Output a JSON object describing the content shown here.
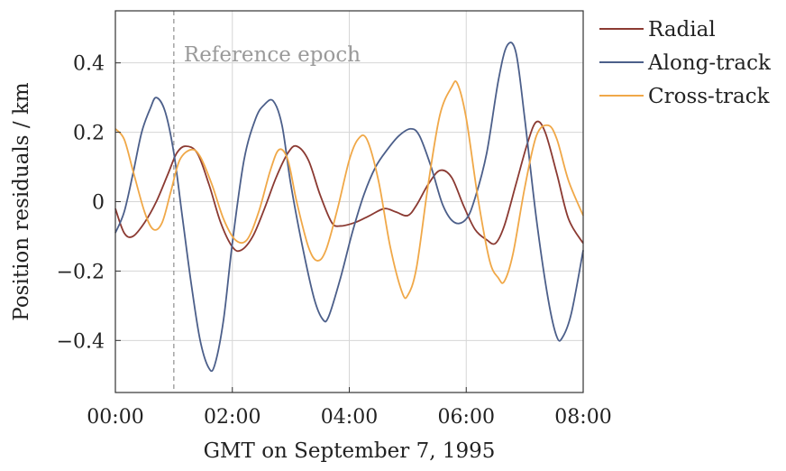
{
  "chart_data": {
    "type": "line",
    "xlabel": "GMT on September 7, 1995",
    "ylabel": "Position residuals / km",
    "x_unit": "hours GMT",
    "xlim": [
      0,
      8
    ],
    "ylim": [
      -0.55,
      0.55
    ],
    "x_ticks": [
      {
        "value": 0,
        "label": "00:00"
      },
      {
        "value": 2,
        "label": "02:00"
      },
      {
        "value": 4,
        "label": "04:00"
      },
      {
        "value": 6,
        "label": "06:00"
      },
      {
        "value": 8,
        "label": "08:00"
      }
    ],
    "y_ticks": [
      {
        "value": 0.4,
        "label": "0.4"
      },
      {
        "value": 0.2,
        "label": "0.2"
      },
      {
        "value": 0,
        "label": "0"
      },
      {
        "value": -0.2,
        "label": "−0.2"
      },
      {
        "value": -0.4,
        "label": "−0.4"
      }
    ],
    "grid": true,
    "legend_position": "outside-right-top",
    "annotation": {
      "x": 1.0,
      "label": "Reference epoch"
    },
    "series": [
      {
        "name": "Radial",
        "color": "#8b3a32",
        "points": [
          [
            0.0,
            -0.02
          ],
          [
            0.15,
            -0.09
          ],
          [
            0.3,
            -0.1
          ],
          [
            0.5,
            -0.06
          ],
          [
            0.7,
            0.0
          ],
          [
            0.9,
            0.08
          ],
          [
            1.05,
            0.14
          ],
          [
            1.2,
            0.16
          ],
          [
            1.4,
            0.14
          ],
          [
            1.6,
            0.05
          ],
          [
            1.8,
            -0.06
          ],
          [
            2.0,
            -0.13
          ],
          [
            2.15,
            -0.14
          ],
          [
            2.35,
            -0.1
          ],
          [
            2.55,
            -0.02
          ],
          [
            2.75,
            0.07
          ],
          [
            2.95,
            0.14
          ],
          [
            3.1,
            0.16
          ],
          [
            3.3,
            0.12
          ],
          [
            3.5,
            0.02
          ],
          [
            3.7,
            -0.06
          ],
          [
            3.85,
            -0.07
          ],
          [
            4.1,
            -0.06
          ],
          [
            4.35,
            -0.04
          ],
          [
            4.6,
            -0.02
          ],
          [
            4.8,
            -0.03
          ],
          [
            5.0,
            -0.04
          ],
          [
            5.15,
            -0.01
          ],
          [
            5.35,
            0.05
          ],
          [
            5.55,
            0.09
          ],
          [
            5.75,
            0.07
          ],
          [
            5.95,
            -0.01
          ],
          [
            6.15,
            -0.08
          ],
          [
            6.35,
            -0.11
          ],
          [
            6.5,
            -0.12
          ],
          [
            6.65,
            -0.07
          ],
          [
            6.85,
            0.05
          ],
          [
            7.05,
            0.17
          ],
          [
            7.2,
            0.23
          ],
          [
            7.35,
            0.2
          ],
          [
            7.55,
            0.08
          ],
          [
            7.75,
            -0.05
          ],
          [
            8.0,
            -0.12
          ]
        ]
      },
      {
        "name": "Along-track",
        "color": "#4c5f8a",
        "points": [
          [
            0.0,
            -0.09
          ],
          [
            0.15,
            -0.03
          ],
          [
            0.3,
            0.08
          ],
          [
            0.45,
            0.2
          ],
          [
            0.6,
            0.27
          ],
          [
            0.7,
            0.3
          ],
          [
            0.85,
            0.26
          ],
          [
            1.0,
            0.14
          ],
          [
            1.15,
            -0.05
          ],
          [
            1.3,
            -0.24
          ],
          [
            1.45,
            -0.4
          ],
          [
            1.6,
            -0.48
          ],
          [
            1.7,
            -0.47
          ],
          [
            1.85,
            -0.34
          ],
          [
            2.0,
            -0.12
          ],
          [
            2.2,
            0.12
          ],
          [
            2.4,
            0.24
          ],
          [
            2.55,
            0.28
          ],
          [
            2.7,
            0.29
          ],
          [
            2.85,
            0.22
          ],
          [
            3.0,
            0.05
          ],
          [
            3.2,
            -0.13
          ],
          [
            3.4,
            -0.28
          ],
          [
            3.55,
            -0.34
          ],
          [
            3.65,
            -0.33
          ],
          [
            3.85,
            -0.22
          ],
          [
            4.05,
            -0.09
          ],
          [
            4.25,
            0.02
          ],
          [
            4.45,
            0.1
          ],
          [
            4.65,
            0.15
          ],
          [
            4.85,
            0.19
          ],
          [
            5.05,
            0.21
          ],
          [
            5.2,
            0.19
          ],
          [
            5.4,
            0.1
          ],
          [
            5.6,
            -0.01
          ],
          [
            5.8,
            -0.06
          ],
          [
            6.0,
            -0.05
          ],
          [
            6.15,
            0.01
          ],
          [
            6.35,
            0.14
          ],
          [
            6.55,
            0.35
          ],
          [
            6.7,
            0.45
          ],
          [
            6.85,
            0.43
          ],
          [
            7.0,
            0.24
          ],
          [
            7.2,
            -0.05
          ],
          [
            7.4,
            -0.28
          ],
          [
            7.55,
            -0.39
          ],
          [
            7.65,
            -0.39
          ],
          [
            7.8,
            -0.32
          ],
          [
            8.0,
            -0.14
          ]
        ]
      },
      {
        "name": "Cross-track",
        "color": "#f0a848",
        "points": [
          [
            0.0,
            0.21
          ],
          [
            0.15,
            0.18
          ],
          [
            0.3,
            0.09
          ],
          [
            0.5,
            -0.03
          ],
          [
            0.65,
            -0.08
          ],
          [
            0.8,
            -0.06
          ],
          [
            0.95,
            0.03
          ],
          [
            1.1,
            0.12
          ],
          [
            1.3,
            0.15
          ],
          [
            1.45,
            0.13
          ],
          [
            1.65,
            0.05
          ],
          [
            1.85,
            -0.05
          ],
          [
            2.05,
            -0.11
          ],
          [
            2.25,
            -0.11
          ],
          [
            2.45,
            -0.03
          ],
          [
            2.65,
            0.09
          ],
          [
            2.8,
            0.15
          ],
          [
            2.95,
            0.12
          ],
          [
            3.1,
            0.0
          ],
          [
            3.3,
            -0.13
          ],
          [
            3.45,
            -0.17
          ],
          [
            3.6,
            -0.14
          ],
          [
            3.8,
            -0.02
          ],
          [
            4.0,
            0.12
          ],
          [
            4.15,
            0.18
          ],
          [
            4.3,
            0.18
          ],
          [
            4.5,
            0.06
          ],
          [
            4.7,
            -0.13
          ],
          [
            4.9,
            -0.26
          ],
          [
            5.0,
            -0.27
          ],
          [
            5.15,
            -0.19
          ],
          [
            5.35,
            0.05
          ],
          [
            5.55,
            0.25
          ],
          [
            5.75,
            0.33
          ],
          [
            5.85,
            0.34
          ],
          [
            6.0,
            0.24
          ],
          [
            6.2,
            0.01
          ],
          [
            6.4,
            -0.17
          ],
          [
            6.55,
            -0.22
          ],
          [
            6.65,
            -0.23
          ],
          [
            6.8,
            -0.15
          ],
          [
            7.0,
            0.04
          ],
          [
            7.2,
            0.19
          ],
          [
            7.4,
            0.22
          ],
          [
            7.55,
            0.18
          ],
          [
            7.75,
            0.06
          ],
          [
            8.0,
            -0.04
          ]
        ]
      }
    ]
  }
}
